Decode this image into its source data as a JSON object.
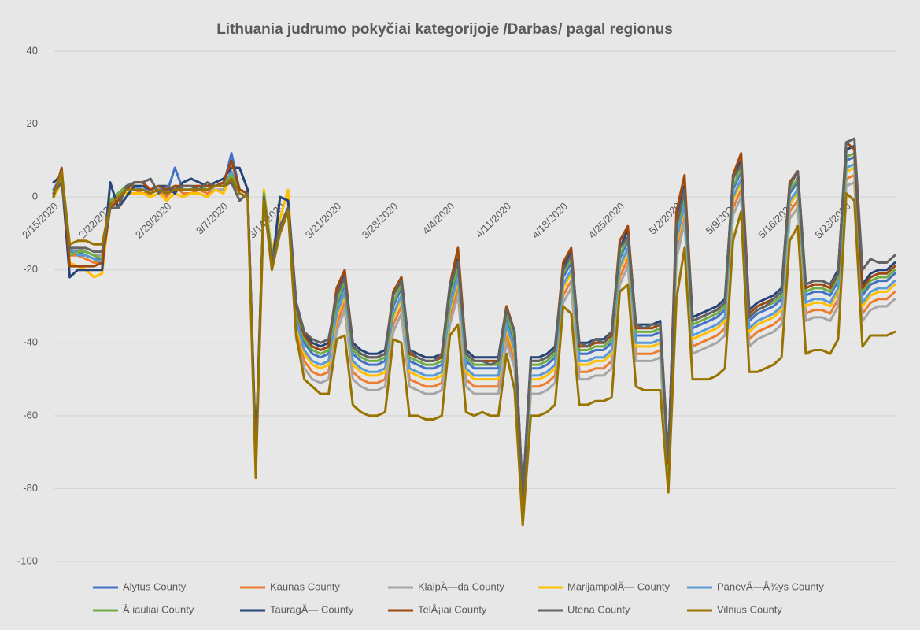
{
  "chart_data": {
    "type": "line",
    "title": "Lithuania judrumo pokyčiai  kategorijoje /Darbas/ pagal regionus",
    "categories": [
      "2/15/2020",
      null,
      null,
      null,
      null,
      null,
      null,
      "2/22/2020",
      null,
      null,
      null,
      null,
      null,
      null,
      "2/29/2020",
      null,
      null,
      null,
      null,
      null,
      null,
      "3/7/2020",
      null,
      null,
      null,
      null,
      null,
      null,
      "3/14/2020",
      null,
      null,
      null,
      null,
      null,
      null,
      "3/21/2020",
      null,
      null,
      null,
      null,
      null,
      null,
      "3/28/2020",
      null,
      null,
      null,
      null,
      null,
      null,
      "4/4/2020",
      null,
      null,
      null,
      null,
      null,
      null,
      "4/11/2020",
      null,
      null,
      null,
      null,
      null,
      null,
      "4/18/2020",
      null,
      null,
      null,
      null,
      null,
      null,
      "4/25/2020",
      null,
      null,
      null,
      null,
      null,
      null,
      "5/2/2020",
      null,
      null,
      null,
      null,
      null,
      null,
      "5/9/2020",
      null,
      null,
      null,
      null,
      null,
      null,
      "5/16/2020",
      null,
      null,
      null,
      null,
      null,
      null,
      "5/23/2020",
      null,
      null,
      null,
      null,
      null,
      null
    ],
    "ylim": [
      -100,
      40
    ],
    "yticks": [
      40,
      20,
      0,
      -20,
      -40,
      -60,
      -80,
      -100
    ],
    "grid": true,
    "legend": "bottom",
    "series": [
      {
        "name": "Alytus County",
        "color": "#4472c4",
        "values": [
          2,
          6,
          -15,
          -15,
          -16,
          -17,
          -17,
          -1,
          1,
          3,
          3,
          2,
          2,
          3,
          1,
          8,
          2,
          2,
          3,
          2,
          3,
          3,
          12,
          2,
          1,
          -72,
          0,
          -17,
          -8,
          -3,
          -32,
          -40,
          -43,
          -44,
          -43,
          -30,
          -24,
          -43,
          -45,
          -46,
          -46,
          -45,
          -30,
          -25,
          -45,
          -46,
          -47,
          -47,
          -46,
          -28,
          -20,
          -45,
          -47,
          -47,
          -47,
          -47,
          -33,
          -40,
          -85,
          -47,
          -47,
          -46,
          -44,
          -22,
          -18,
          -43,
          -43,
          -42,
          -42,
          -40,
          -17,
          -12,
          -38,
          -38,
          -38,
          -37,
          -75,
          -10,
          0,
          -36,
          -35,
          -34,
          -33,
          -31,
          2,
          7,
          -34,
          -32,
          -31,
          -30,
          -28,
          1,
          4,
          -27,
          -26,
          -26,
          -27,
          -23,
          10,
          11,
          -27,
          -24,
          -23,
          -23,
          -21
        ]
      },
      {
        "name": "Kaunas County",
        "color": "#ed7d31",
        "values": [
          1,
          5,
          -16,
          -16,
          -17,
          -18,
          -18,
          -2,
          0,
          2,
          2,
          1,
          1,
          2,
          0,
          3,
          1,
          1,
          2,
          1,
          2,
          2,
          7,
          1,
          0,
          -73,
          -1,
          -18,
          -9,
          -4,
          -37,
          -45,
          -48,
          -49,
          -48,
          -35,
          -29,
          -48,
          -50,
          -51,
          -51,
          -50,
          -35,
          -30,
          -50,
          -51,
          -52,
          -52,
          -51,
          -33,
          -25,
          -50,
          -52,
          -52,
          -52,
          -52,
          -38,
          -45,
          -90,
          -52,
          -52,
          -51,
          -49,
          -27,
          -23,
          -48,
          -48,
          -47,
          -47,
          -45,
          -22,
          -17,
          -43,
          -43,
          -43,
          -42,
          -80,
          -15,
          -5,
          -41,
          -40,
          -39,
          -38,
          -36,
          -3,
          2,
          -39,
          -37,
          -36,
          -35,
          -33,
          -4,
          -1,
          -32,
          -31,
          -31,
          -32,
          -28,
          5,
          6,
          -32,
          -29,
          -28,
          -28,
          -26
        ]
      },
      {
        "name": "KlaipÄ—da County",
        "color": "#a5a5a5",
        "values": [
          1,
          4,
          -14,
          -14,
          -15,
          -16,
          -16,
          -1,
          1,
          2,
          2,
          2,
          2,
          2,
          1,
          3,
          2,
          2,
          2,
          2,
          2,
          2,
          5,
          2,
          1,
          -70,
          0,
          -16,
          -8,
          -4,
          -39,
          -47,
          -50,
          -51,
          -50,
          -37,
          -31,
          -50,
          -52,
          -53,
          -53,
          -52,
          -37,
          -32,
          -52,
          -53,
          -54,
          -54,
          -53,
          -35,
          -27,
          -52,
          -54,
          -54,
          -54,
          -54,
          -40,
          -47,
          -88,
          -54,
          -54,
          -53,
          -51,
          -29,
          -25,
          -50,
          -50,
          -49,
          -49,
          -47,
          -24,
          -19,
          -45,
          -45,
          -45,
          -44,
          -78,
          -17,
          -7,
          -43,
          -42,
          -41,
          -40,
          -38,
          -5,
          0,
          -41,
          -39,
          -38,
          -37,
          -35,
          -6,
          -3,
          -34,
          -33,
          -33,
          -34,
          -30,
          3,
          4,
          -34,
          -31,
          -30,
          -30,
          -28
        ]
      },
      {
        "name": "MarijampolÄ— County",
        "color": "#ffc000",
        "values": [
          0,
          4,
          -18,
          -19,
          -20,
          -22,
          -21,
          -2,
          0,
          1,
          1,
          1,
          0,
          1,
          -1,
          1,
          0,
          1,
          1,
          0,
          2,
          1,
          6,
          1,
          0,
          -72,
          2,
          -15,
          -6,
          2,
          -35,
          -43,
          -46,
          -47,
          -46,
          -33,
          -27,
          -46,
          -48,
          -49,
          -49,
          -48,
          -33,
          -28,
          -48,
          -49,
          -50,
          -50,
          -49,
          -31,
          -23,
          -48,
          -50,
          -50,
          -50,
          -50,
          -36,
          -43,
          -86,
          -50,
          -50,
          -49,
          -47,
          -25,
          -21,
          -46,
          -46,
          -45,
          -45,
          -43,
          -20,
          -15,
          -41,
          -41,
          -41,
          -40,
          -77,
          -13,
          -3,
          -39,
          -38,
          -37,
          -36,
          -34,
          -1,
          4,
          -37,
          -35,
          -34,
          -33,
          -31,
          -2,
          1,
          -30,
          -29,
          -29,
          -30,
          -26,
          7,
          8,
          -30,
          -27,
          -26,
          -26,
          -24
        ]
      },
      {
        "name": "PanevÄ—Å¾ys County",
        "color": "#5b9bd5",
        "values": [
          1,
          5,
          -14,
          -16,
          -16,
          -17,
          -18,
          -1,
          1,
          3,
          3,
          2,
          2,
          3,
          1,
          3,
          2,
          2,
          3,
          2,
          3,
          3,
          7,
          2,
          1,
          -72,
          0,
          -17,
          -8,
          -3,
          -34,
          -42,
          -45,
          -46,
          -45,
          -32,
          -26,
          -45,
          -47,
          -48,
          -48,
          -47,
          -32,
          -27,
          -47,
          -48,
          -49,
          -49,
          -48,
          -30,
          -22,
          -47,
          -49,
          -49,
          -49,
          -49,
          -35,
          -42,
          -86,
          -49,
          -49,
          -48,
          -46,
          -24,
          -20,
          -45,
          -45,
          -44,
          -44,
          -42,
          -19,
          -14,
          -40,
          -40,
          -40,
          -39,
          -76,
          -12,
          -2,
          -38,
          -37,
          -36,
          -35,
          -33,
          0,
          5,
          -36,
          -34,
          -33,
          -32,
          -30,
          -1,
          2,
          -29,
          -28,
          -28,
          -29,
          -25,
          8,
          9,
          -29,
          -26,
          -25,
          -25,
          -23
        ]
      },
      {
        "name": "Å iauliai County",
        "color": "#70ad47",
        "values": [
          1,
          5,
          -16,
          -15,
          -15,
          -16,
          -17,
          -1,
          1,
          3,
          3,
          3,
          2,
          3,
          2,
          3,
          2,
          2,
          3,
          2,
          3,
          3,
          6,
          2,
          1,
          -70,
          1,
          -16,
          -8,
          -3,
          -31,
          -39,
          -42,
          -43,
          -42,
          -29,
          -23,
          -42,
          -44,
          -45,
          -45,
          -44,
          -29,
          -24,
          -44,
          -45,
          -46,
          -46,
          -45,
          -27,
          -19,
          -44,
          -46,
          -46,
          -46,
          -46,
          -32,
          -39,
          -84,
          -46,
          -46,
          -45,
          -43,
          -21,
          -17,
          -42,
          -42,
          -41,
          -41,
          -39,
          -16,
          -11,
          -37,
          -37,
          -37,
          -36,
          -74,
          -9,
          1,
          -35,
          -34,
          -33,
          -32,
          -30,
          3,
          8,
          -33,
          -31,
          -30,
          -29,
          -27,
          2,
          5,
          -26,
          -25,
          -25,
          -26,
          -22,
          11,
          12,
          -26,
          -23,
          -22,
          -22,
          -20
        ]
      },
      {
        "name": "TauragÄ— County",
        "color": "#264478",
        "values": [
          4,
          6,
          -22,
          -20,
          -20,
          -20,
          -20,
          4,
          -3,
          0,
          3,
          3,
          2,
          3,
          3,
          1,
          4,
          5,
          4,
          3,
          4,
          5,
          8,
          8,
          2,
          -70,
          0,
          -20,
          0,
          -1,
          -29,
          -37,
          -40,
          -41,
          -40,
          -27,
          -21,
          -40,
          -42,
          -43,
          -43,
          -42,
          -27,
          -22,
          -42,
          -43,
          -44,
          -44,
          -43,
          -25,
          -17,
          -42,
          -44,
          -44,
          -44,
          -44,
          -30,
          -37,
          -82,
          -44,
          -44,
          -43,
          -41,
          -19,
          -15,
          -40,
          -40,
          -39,
          -39,
          -37,
          -14,
          -9,
          -35,
          -35,
          -35,
          -34,
          -72,
          -7,
          3,
          -33,
          -32,
          -31,
          -30,
          -28,
          5,
          10,
          -31,
          -29,
          -28,
          -27,
          -25,
          4,
          7,
          -24,
          -23,
          -23,
          -24,
          -20,
          13,
          14,
          -24,
          -21,
          -20,
          -20,
          -18
        ]
      },
      {
        "name": "TelÅ¡iai County",
        "color": "#9e480e",
        "values": [
          0,
          8,
          -19,
          -19,
          -19,
          -19,
          -18,
          -3,
          -1,
          2,
          4,
          4,
          2,
          3,
          2,
          3,
          3,
          3,
          3,
          3,
          3,
          4,
          10,
          2,
          1,
          -72,
          -1,
          -18,
          -9,
          -3,
          -30,
          -38,
          -41,
          -42,
          -41,
          -25,
          -20,
          -41,
          -43,
          -44,
          -44,
          -43,
          -26,
          -22,
          -43,
          -44,
          -45,
          -45,
          -44,
          -24,
          -14,
          -43,
          -45,
          -45,
          -45,
          -45,
          -30,
          -37,
          -83,
          -45,
          -45,
          -44,
          -42,
          -18,
          -14,
          -41,
          -41,
          -40,
          -40,
          -38,
          -12,
          -8,
          -36,
          -36,
          -36,
          -35,
          -73,
          -4,
          6,
          -34,
          -33,
          -32,
          -31,
          -29,
          6,
          12,
          -32,
          -30,
          -29,
          -28,
          -26,
          4,
          7,
          -25,
          -24,
          -24,
          -25,
          -21,
          15,
          13,
          -25,
          -22,
          -21,
          -21,
          -19
        ]
      },
      {
        "name": "Utena County",
        "color": "#636363",
        "values": [
          1,
          4,
          -14,
          -14,
          -14,
          -15,
          -15,
          -3,
          -3,
          3,
          4,
          4,
          5,
          1,
          3,
          2,
          3,
          3,
          2,
          4,
          3,
          3,
          4,
          -1,
          1,
          -73,
          0,
          -18,
          -8,
          -3,
          -29,
          -37,
          -39,
          -40,
          -39,
          -27,
          -22,
          -41,
          -43,
          -44,
          -44,
          -43,
          -27,
          -23,
          -42,
          -44,
          -45,
          -45,
          -43,
          -24,
          -18,
          -43,
          -45,
          -45,
          -46,
          -45,
          -31,
          -37,
          -82,
          -45,
          -45,
          -44,
          -42,
          -20,
          -16,
          -40,
          -41,
          -39,
          -40,
          -37,
          -14,
          -11,
          -35,
          -36,
          -35,
          -35,
          -72,
          -8,
          2,
          -34,
          -33,
          -32,
          -31,
          -29,
          5,
          9,
          -33,
          -31,
          -30,
          -28,
          -26,
          3,
          7,
          -24,
          -23,
          -23,
          -24,
          -21,
          15,
          16,
          -20,
          -17,
          -18,
          -18,
          -16
        ]
      },
      {
        "name": "Vilnius County",
        "color": "#997300",
        "values": [
          0,
          7,
          -13,
          -12,
          -12,
          -13,
          -13,
          -2,
          0,
          2,
          2,
          2,
          1,
          2,
          1,
          2,
          2,
          2,
          2,
          2,
          3,
          3,
          5,
          1,
          0,
          -77,
          -1,
          -20,
          -10,
          -4,
          -38,
          -50,
          -52,
          -54,
          -54,
          -39,
          -38,
          -57,
          -59,
          -60,
          -60,
          -59,
          -39,
          -40,
          -60,
          -60,
          -61,
          -61,
          -60,
          -38,
          -35,
          -59,
          -60,
          -59,
          -60,
          -60,
          -43,
          -53,
          -90,
          -60,
          -60,
          -59,
          -57,
          -30,
          -32,
          -57,
          -57,
          -56,
          -56,
          -55,
          -26,
          -24,
          -52,
          -53,
          -53,
          -53,
          -81,
          -28,
          -14,
          -50,
          -50,
          -50,
          -49,
          -47,
          -12,
          -4,
          -48,
          -48,
          -47,
          -46,
          -44,
          -12,
          -8,
          -43,
          -42,
          -42,
          -43,
          -39,
          1,
          -1,
          -41,
          -38,
          -38,
          -38,
          -37
        ]
      }
    ]
  }
}
